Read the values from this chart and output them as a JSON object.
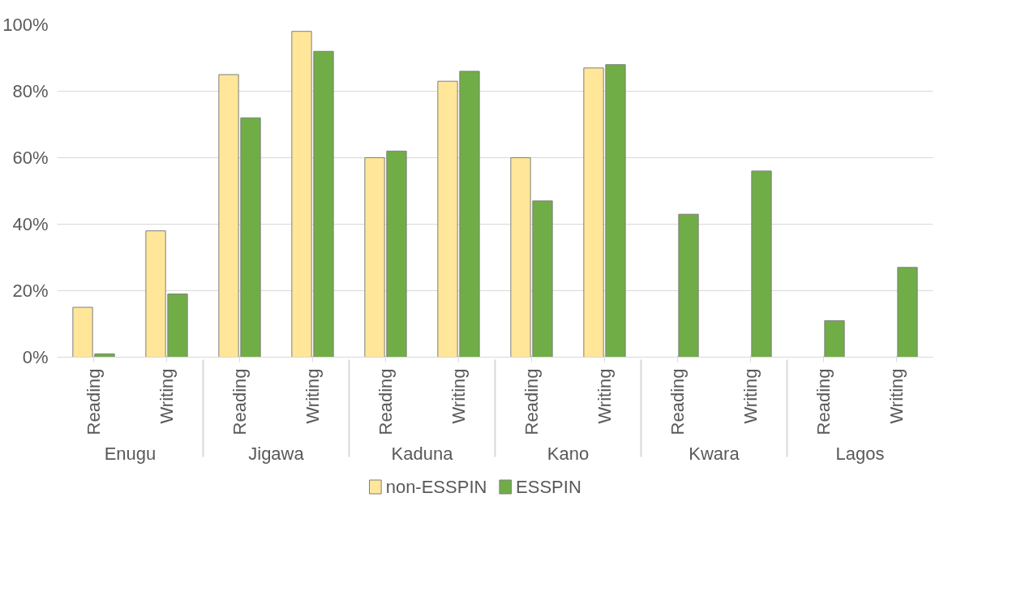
{
  "chart_data": {
    "type": "bar",
    "categories": [
      "Reading",
      "Writing",
      "Reading",
      "Writing",
      "Reading",
      "Writing",
      "Reading",
      "Writing",
      "Reading",
      "Writing",
      "Reading",
      "Writing"
    ],
    "annotations": [
      "Enugu",
      "Jigawa",
      "Kaduna",
      "Kano",
      "Kwara",
      "Lagos"
    ],
    "series": [
      {
        "name": "non-ESSPIN",
        "color": "#ffe699",
        "values": [
          15,
          38,
          85,
          98,
          60,
          83,
          60,
          87,
          null,
          null,
          null,
          null
        ]
      },
      {
        "name": "ESSPIN",
        "color": "#70ad47",
        "values": [
          1,
          19,
          72,
          92,
          62,
          86,
          47,
          88,
          43,
          56,
          11,
          27
        ]
      }
    ],
    "ylim": [
      0,
      100
    ],
    "yticks": [
      {
        "value": 0,
        "label": "0%"
      },
      {
        "value": 20,
        "label": "20%"
      },
      {
        "value": 40,
        "label": "40%"
      },
      {
        "value": 60,
        "label": "60%"
      },
      {
        "value": 80,
        "label": "80%"
      },
      {
        "value": 100,
        "label": "100%"
      }
    ],
    "grid": "y",
    "legend": "bottom"
  }
}
